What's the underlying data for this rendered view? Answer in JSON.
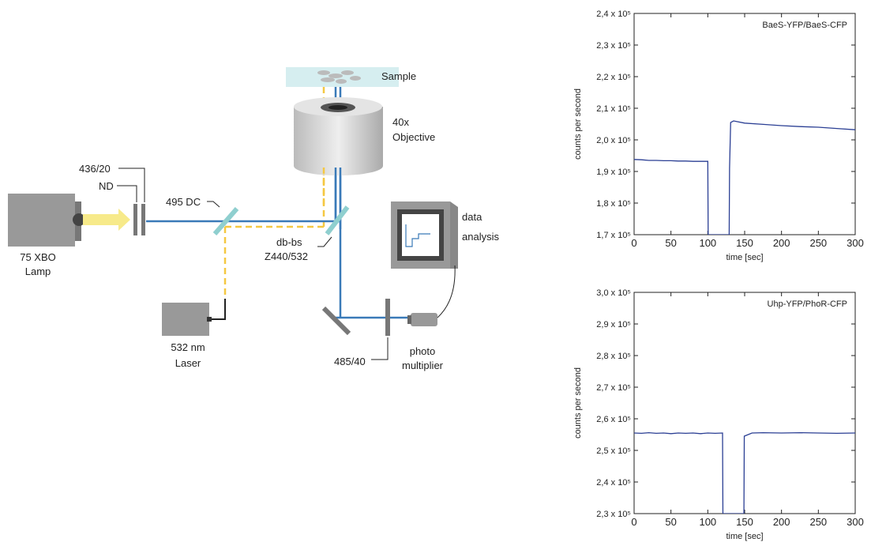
{
  "diagram": {
    "sample": "Sample",
    "objective": [
      "40x",
      "Objective"
    ],
    "filter1": "436/20",
    "nd": "ND",
    "dc": "495 DC",
    "lamp": [
      "75 XBO",
      "Lamp"
    ],
    "dbbs": [
      "db-bs",
      "Z440/532"
    ],
    "laser": [
      "532 nm",
      "Laser"
    ],
    "analysis": [
      "data",
      "analysis"
    ],
    "pmt": [
      "photo",
      "multiplier"
    ],
    "filter2": "485/40"
  },
  "chart_data": [
    {
      "type": "line",
      "xlabel": "time [sec]",
      "ylabel": "counts per second",
      "x": [
        0,
        10,
        20,
        30,
        40,
        50,
        60,
        70,
        80,
        90,
        100,
        100.5,
        129,
        129.5,
        131,
        135,
        150,
        175,
        200,
        225,
        250,
        275,
        300
      ],
      "series": [
        {
          "name": "BaeS-YFP/BaeS-CFP",
          "color": "#2b3f94",
          "values": [
            193800,
            193700,
            193500,
            193500,
            193400,
            193400,
            193300,
            193300,
            193200,
            193200,
            193200,
            170000,
            170000,
            191000,
            205500,
            206000,
            205300,
            204900,
            204500,
            204200,
            204000,
            203600,
            203200
          ]
        }
      ],
      "xlim": [
        0,
        300
      ],
      "xticks": [
        0,
        50,
        100,
        150,
        200,
        250,
        300
      ],
      "ylim": [
        170000,
        240000
      ],
      "yticks": [
        {
          "value": 170000,
          "label": "1,7 x 10⁵"
        },
        {
          "value": 180000,
          "label": "1,8 x 10⁵"
        },
        {
          "value": 190000,
          "label": "1,9 x 10⁵"
        },
        {
          "value": 200000,
          "label": "2,0 x 10⁵"
        },
        {
          "value": 210000,
          "label": "2,1 x 10⁵"
        },
        {
          "value": 220000,
          "label": "2,2 x 10⁵"
        },
        {
          "value": 230000,
          "label": "2,3 x 10⁵"
        },
        {
          "value": 240000,
          "label": "2,4 x 10⁵"
        }
      ]
    },
    {
      "type": "line",
      "xlabel": "time [sec]",
      "ylabel": "counts per second",
      "x": [
        0,
        10,
        20,
        30,
        40,
        50,
        60,
        70,
        80,
        90,
        100,
        110,
        120,
        120.5,
        149,
        149.5,
        160,
        175,
        200,
        225,
        250,
        275,
        300
      ],
      "series": [
        {
          "name": "Uhp-YFP/PhoR-CFP",
          "color": "#2b3f94",
          "values": [
            255500,
            255400,
            255600,
            255400,
            255500,
            255300,
            255500,
            255400,
            255500,
            255300,
            255500,
            255400,
            255500,
            230000,
            230000,
            254500,
            255500,
            255600,
            255500,
            255600,
            255500,
            255400,
            255500
          ]
        }
      ],
      "xlim": [
        0,
        300
      ],
      "xticks": [
        0,
        50,
        100,
        150,
        200,
        250,
        300
      ],
      "ylim": [
        230000,
        300000
      ],
      "yticks": [
        {
          "value": 230000,
          "label": "2,3 x 10⁵"
        },
        {
          "value": 240000,
          "label": "2,4 x 10⁵"
        },
        {
          "value": 250000,
          "label": "2,5 x 10⁵"
        },
        {
          "value": 260000,
          "label": "2,6 x 10⁵"
        },
        {
          "value": 270000,
          "label": "2,7 x 10⁵"
        },
        {
          "value": 280000,
          "label": "2,8 x 10⁵"
        },
        {
          "value": 290000,
          "label": "2,9 x 10⁵"
        },
        {
          "value": 300000,
          "label": "3,0 x 10⁵"
        }
      ]
    }
  ]
}
